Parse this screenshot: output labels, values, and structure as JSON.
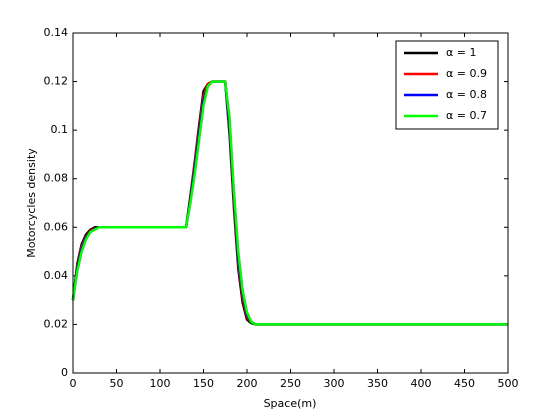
{
  "chart_data": {
    "type": "line",
    "xlabel": "Space(m)",
    "ylabel": "Motorcycles density",
    "x": [
      0,
      5,
      10,
      15,
      20,
      25,
      30,
      40,
      130,
      135,
      140,
      145,
      150,
      155,
      160,
      175,
      180,
      185,
      190,
      195,
      200,
      205,
      210,
      220,
      500
    ],
    "series": [
      {
        "name": "α = 1",
        "color": "#000000",
        "values": [
          0.03,
          0.045,
          0.053,
          0.057,
          0.059,
          0.06,
          0.06,
          0.06,
          0.06,
          0.073,
          0.087,
          0.102,
          0.116,
          0.119,
          0.12,
          0.12,
          0.098,
          0.068,
          0.043,
          0.029,
          0.022,
          0.0205,
          0.02,
          0.02,
          0.02
        ]
      },
      {
        "name": "α = 0.9",
        "color": "#ff0000",
        "values": [
          0.03,
          0.044,
          0.052,
          0.056,
          0.0585,
          0.0595,
          0.06,
          0.06,
          0.06,
          0.072,
          0.086,
          0.1,
          0.114,
          0.119,
          0.12,
          0.12,
          0.1,
          0.07,
          0.045,
          0.031,
          0.023,
          0.021,
          0.02,
          0.02,
          0.02
        ]
      },
      {
        "name": "α = 0.8",
        "color": "#0000ff",
        "values": [
          0.03,
          0.043,
          0.051,
          0.0555,
          0.058,
          0.0593,
          0.06,
          0.06,
          0.06,
          0.071,
          0.084,
          0.098,
          0.112,
          0.118,
          0.12,
          0.12,
          0.102,
          0.073,
          0.047,
          0.033,
          0.024,
          0.021,
          0.02,
          0.02,
          0.02
        ]
      },
      {
        "name": "α = 0.7",
        "color": "#00ff00",
        "values": [
          0.03,
          0.042,
          0.05,
          0.055,
          0.058,
          0.059,
          0.06,
          0.06,
          0.06,
          0.07,
          0.082,
          0.096,
          0.11,
          0.118,
          0.12,
          0.12,
          0.105,
          0.075,
          0.05,
          0.034,
          0.025,
          0.021,
          0.02,
          0.02,
          0.02
        ]
      }
    ],
    "xlim": [
      0,
      500
    ],
    "xticks": [
      0,
      50,
      100,
      150,
      200,
      250,
      300,
      350,
      400,
      450,
      500
    ],
    "ylim": [
      0,
      0.14
    ],
    "yticks": [
      0,
      0.02,
      0.04,
      0.06,
      0.08,
      0.1,
      0.12,
      0.14
    ],
    "grid": false,
    "legend": "northeast"
  }
}
